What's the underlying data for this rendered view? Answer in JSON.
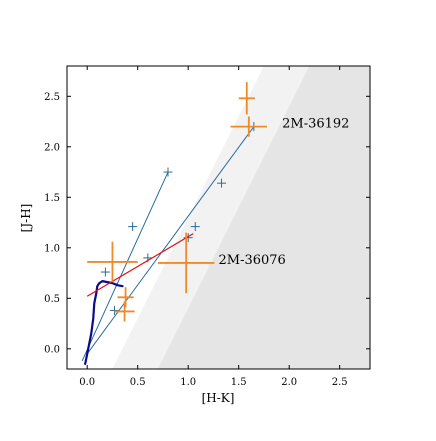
{
  "chart_data": {
    "type": "scatter",
    "xlabel": "[H-K]",
    "ylabel": "[J-H]",
    "xlim": [
      -0.2,
      2.8
    ],
    "ylim": [
      -0.2,
      2.8
    ],
    "xticks": [
      "0.0",
      "0.5",
      "1.0",
      "1.5",
      "2.0",
      "2.5"
    ],
    "xtick_values": [
      0.0,
      0.5,
      1.0,
      1.5,
      2.0,
      2.5
    ],
    "yticks": [
      "0.0",
      "0.5",
      "1.0",
      "1.5",
      "2.0",
      "2.5"
    ],
    "ytick_values": [
      0.0,
      0.5,
      1.0,
      1.5,
      2.0,
      2.5
    ],
    "grid": false,
    "colors": {
      "reddening_line": "#2b6aa0",
      "main_sequence": "#0b0b8a",
      "ctts_locus": "#e01010",
      "data_points": "#f08a28",
      "shade_light": "#f2f2f2",
      "shade_dark": "#e5e5e5"
    },
    "shaded_regions": [
      {
        "polygon": [
          [
            0.25,
            -0.2
          ],
          [
            1.75,
            2.8
          ],
          [
            2.2,
            2.8
          ],
          [
            0.7,
            -0.2
          ]
        ]
      },
      {
        "polygon": [
          [
            0.7,
            -0.2
          ],
          [
            2.2,
            2.8
          ],
          [
            2.8,
            2.8
          ],
          [
            2.8,
            -0.2
          ]
        ]
      }
    ],
    "reddening_lines": [
      {
        "x": [
          -0.05,
          0.8
        ],
        "y": [
          -0.12,
          1.75
        ],
        "markers": [
          [
            0.18,
            0.76
          ],
          [
            0.45,
            1.21
          ],
          [
            0.8,
            1.75
          ]
        ]
      },
      {
        "x": [
          0.0,
          1.65
        ],
        "y": [
          -0.05,
          2.2
        ],
        "markers": [
          [
            0.27,
            0.38
          ],
          [
            0.6,
            0.9
          ],
          [
            1.0,
            1.1
          ],
          [
            1.07,
            1.21
          ],
          [
            1.33,
            1.64
          ],
          [
            1.65,
            2.2
          ]
        ]
      }
    ],
    "main_sequence": {
      "x": [
        -0.02,
        0.0,
        0.02,
        0.04,
        0.06,
        0.07,
        0.09,
        0.1,
        0.12,
        0.15,
        0.2,
        0.25,
        0.3,
        0.35
      ],
      "y": [
        -0.15,
        -0.05,
        0.05,
        0.15,
        0.3,
        0.45,
        0.55,
        0.62,
        0.65,
        0.67,
        0.66,
        0.65,
        0.63,
        0.62
      ]
    },
    "ctts_locus": {
      "x": [
        0.0,
        1.05
      ],
      "y": [
        0.52,
        1.14
      ]
    },
    "points": [
      {
        "x": 0.25,
        "y": 0.86,
        "xerr": 0.25,
        "yerr": 0.2
      },
      {
        "x": 0.98,
        "y": 0.85,
        "xerr": 0.28,
        "yerr": 0.3
      },
      {
        "x": 0.38,
        "y": 0.51,
        "xerr": 0.08,
        "yerr": 0.1
      },
      {
        "x": 0.37,
        "y": 0.37,
        "xerr": 0.1,
        "yerr": 0.1
      },
      {
        "x": 1.58,
        "y": 2.48,
        "xerr": 0.08,
        "yerr": 0.16
      },
      {
        "x": 1.6,
        "y": 2.2,
        "xerr": 0.18,
        "yerr": 0.1
      }
    ],
    "annotations": [
      {
        "text": "2M-36192",
        "x": 1.93,
        "y": 2.23
      },
      {
        "text": "2M-36076",
        "x": 1.3,
        "y": 0.88
      }
    ]
  }
}
